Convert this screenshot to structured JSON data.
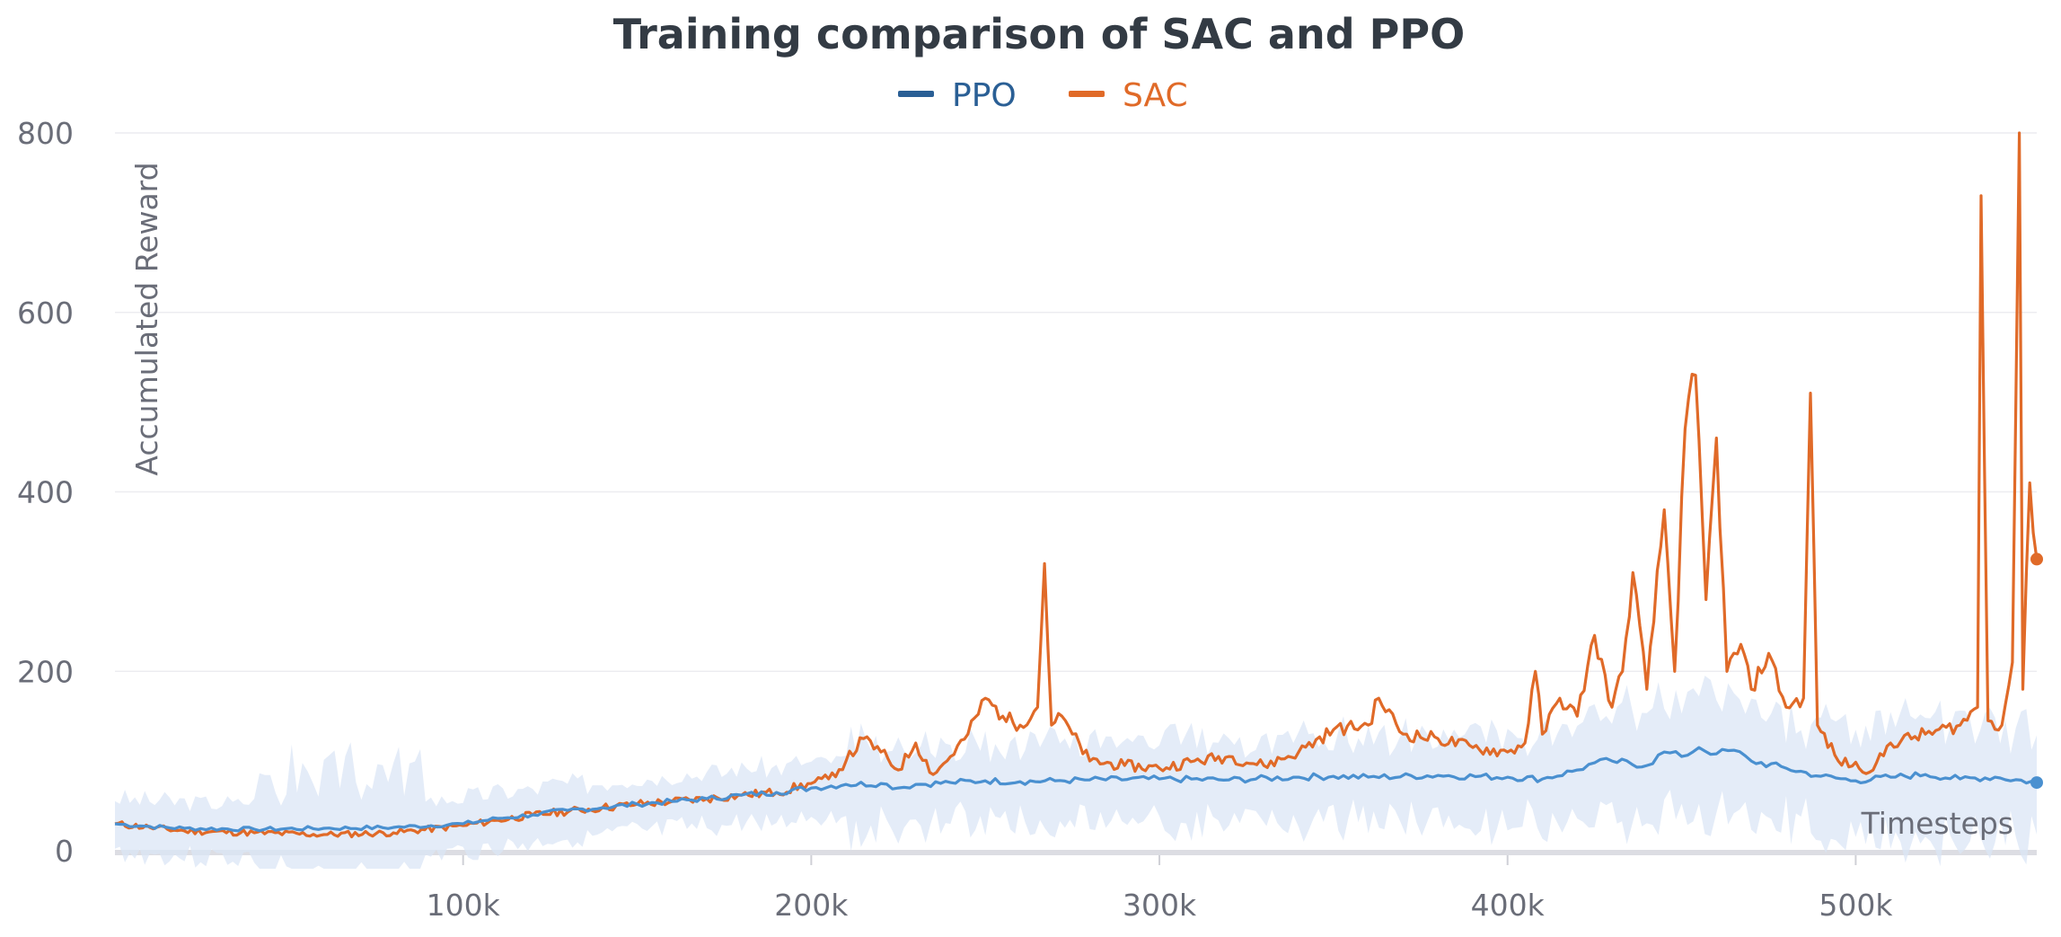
{
  "chart_data": {
    "type": "line",
    "title": "Training comparison of SAC and PPO",
    "xlabel": "Timesteps",
    "ylabel": "Accumulated Reward",
    "xlim": [
      0,
      552000
    ],
    "ylim": [
      0,
      800
    ],
    "x_ticks": [
      100000,
      200000,
      300000,
      400000,
      500000
    ],
    "x_tick_labels": [
      "100k",
      "200k",
      "300k",
      "400k",
      "500k"
    ],
    "y_ticks": [
      0,
      200,
      400,
      600,
      800
    ],
    "y_tick_labels": [
      "0",
      "200",
      "400",
      "600",
      "800"
    ],
    "grid": true,
    "legend_position": "top-center",
    "series": [
      {
        "name": "PPO",
        "color": "#4a90d0",
        "legend_color": "#2a5f95",
        "x": [
          0,
          10000,
          20000,
          40000,
          60000,
          80000,
          100000,
          110000,
          120000,
          130000,
          140000,
          150000,
          160000,
          170000,
          180000,
          190000,
          200000,
          210000,
          220000,
          225000,
          230000,
          240000,
          250000,
          260000,
          270000,
          280000,
          300000,
          320000,
          340000,
          350000,
          360000,
          380000,
          400000,
          410000,
          420000,
          425000,
          430000,
          440000,
          445000,
          450000,
          455000,
          460000,
          465000,
          470000,
          480000,
          490000,
          500000,
          510000,
          520000,
          530000,
          540000,
          552000
        ],
        "values": [
          30,
          27,
          25,
          24,
          25,
          26,
          30,
          36,
          40,
          45,
          48,
          52,
          55,
          58,
          62,
          65,
          70,
          74,
          75,
          70,
          74,
          76,
          78,
          77,
          78,
          79,
          80,
          79,
          82,
          83,
          82,
          84,
          82,
          80,
          90,
          98,
          100,
          95,
          110,
          105,
          115,
          108,
          112,
          100,
          92,
          83,
          78,
          82,
          85,
          80,
          82,
          76
        ]
      },
      {
        "name": "SAC",
        "color": "#e06a28",
        "legend_color": "#e06a28",
        "x": [
          0,
          10000,
          20000,
          40000,
          60000,
          80000,
          100000,
          110000,
          120000,
          140000,
          150000,
          160000,
          170000,
          180000,
          190000,
          200000,
          205000,
          210000,
          215000,
          220000,
          225000,
          230000,
          235000,
          240000,
          245000,
          250000,
          255000,
          260000,
          265000,
          267000,
          269000,
          272000,
          275000,
          280000,
          290000,
          300000,
          310000,
          320000,
          330000,
          340000,
          350000,
          360000,
          363000,
          370000,
          380000,
          390000,
          400000,
          405000,
          408000,
          410000,
          415000,
          420000,
          425000,
          430000,
          433000,
          436000,
          440000,
          445000,
          448000,
          451000,
          454000,
          457000,
          460000,
          463000,
          467000,
          470000,
          475000,
          480000,
          485000,
          487000,
          489000,
          495000,
          505000,
          510000,
          520000,
          530000,
          535000,
          536000,
          538000,
          542000,
          545000,
          547000,
          548000,
          550000,
          552000
        ],
        "values": [
          30,
          26,
          22,
          20,
          18,
          20,
          28,
          34,
          40,
          48,
          52,
          55,
          58,
          62,
          65,
          75,
          80,
          100,
          125,
          110,
          90,
          120,
          85,
          105,
          130,
          170,
          150,
          140,
          160,
          320,
          140,
          150,
          130,
          100,
          95,
          92,
          100,
          105,
          95,
          110,
          135,
          140,
          170,
          130,
          125,
          115,
          110,
          120,
          200,
          130,
          170,
          150,
          240,
          160,
          200,
          310,
          180,
          380,
          200,
          470,
          530,
          280,
          460,
          200,
          230,
          180,
          220,
          160,
          170,
          510,
          140,
          100,
          90,
          120,
          130,
          140,
          160,
          730,
          145,
          140,
          210,
          800,
          180,
          410,
          325
        ]
      }
    ]
  }
}
